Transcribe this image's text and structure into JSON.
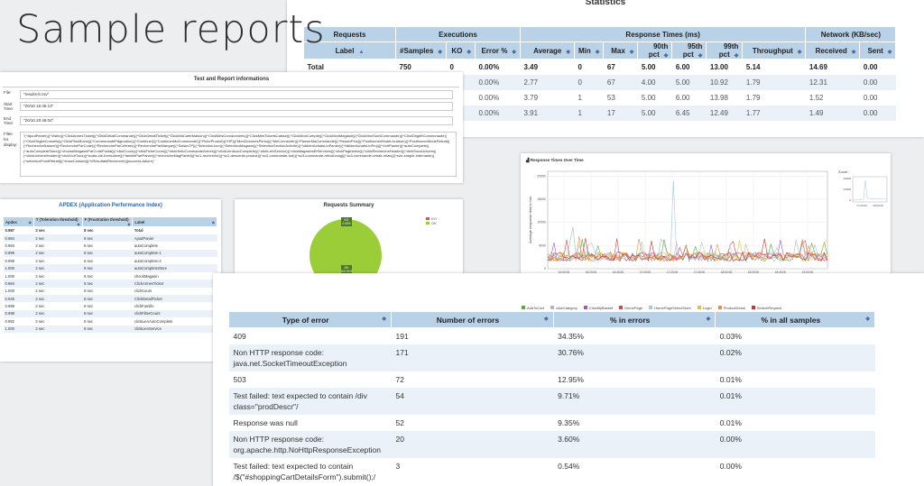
{
  "title": "Sample reports",
  "statistics": {
    "title": "Statistics",
    "group_headers": [
      "Requests",
      "Executions",
      "Response Times (ms)",
      "Network (KB/sec)"
    ],
    "columns": [
      "Label",
      "#Samples",
      "KO",
      "Error %",
      "Average",
      "Min",
      "Max",
      "90th pct",
      "95th pct",
      "99th pct",
      "Throughput",
      "Received",
      "Sent"
    ],
    "rows": [
      [
        "Total",
        "750",
        "0",
        "0.00%",
        "3.49",
        "0",
        "67",
        "5.00",
        "6.00",
        "13.00",
        "5.14",
        "14.69",
        "0.00"
      ],
      [
        "",
        "",
        "",
        "0.00%",
        "2.77",
        "0",
        "67",
        "4.00",
        "5.00",
        "10.92",
        "1.79",
        "12.31",
        "0.00"
      ],
      [
        "",
        "",
        "",
        "0.00%",
        "3.79",
        "1",
        "53",
        "5.00",
        "6.00",
        "13.98",
        "1.79",
        "1.52",
        "0.00"
      ],
      [
        "",
        "",
        "",
        "0.00%",
        "3.91",
        "1",
        "17",
        "5.00",
        "6.45",
        "12.49",
        "1.77",
        "1.49",
        "0.00"
      ]
    ]
  },
  "info": {
    "title": "Test and Report informations",
    "file_label": "File:",
    "file": "\"results-lt.csv\"",
    "start_label": "Start Time:",
    "start": "\"20/10 16:45:13\"",
    "end_label": "End Time:",
    "end": "\"20/10 20:48:04\"",
    "filter_label": "Filter for display:",
    "filter": "\"(^AjoutPanier)|(^Visite)|(^ClickArmesTicket)|(^ClickDetailCommande)|(^ClickDetailTicket)|(^ClickMaCarteMaison)|(^ClickMesCoordonnees)|(^ClickMesTicketsCaisse)|(^ClickMonCompte)|(^ClickMonMagasin)|(^ClickMonSuiviCommande)|(^ClickOngletCommunaute)|(^ClickOngletConseils)|(^ClickPlusMoins)|(^CommunautePagination)|(^Continuer)|(^ContinuerMaCommande)|(^FicheProduit)|(^HP)|(^MesDonneesPerso)|(^MeConnecter)|(^PasserMaCommande)|(^PasserPlus)|(^PositionnerModeLivraison)|(^PositionnerModeRetrait)|(^RechercheNaturel)|(^RechercheParCode)|(^RechercheParCriteres)|(^RechercheParMarque)|(^SaisieCP)|(^SelectionJour)|(^SelectionMagasin)|(^SelectionSectionActivite)|(^ValiderAchatsLinPanier)|(^ValiderAchatsLinProj)|(^VoirPanier)|(^autoComplete)|(^autoCompleteStore)|(^chooseMagasinParCodePostal)|(^clickCours)|(^clickFicheCours)|(^clickHistoCommandeArmes)|(^clickLienAutoComplete)|(^clickLienService)|(^clickMagasinsEtServices)|(^clickPagination)|(^clickRechercheHeader)|(^clickSousUnivers)|(^clickUniversHeader)|(^clickVoirTous)|(^scala-ide-formulaire)|(^famillePartPanier)|(^rechercheMagPartiel)|(^sc1-recherche)|(^sc2-descente-produit)|(^sc3-commande-tod)|(^sc3-commande-retrait-mag)|(^sc3-commande-retrait-relais)|(^sort-simple-internaute)|(^selectionPointRetrait)|(^showContact)|(^nResultatsRecherche)|(success-failure)\""
  },
  "apdex": {
    "title": "APDEX (Application Performance Index)",
    "headers": [
      "Apdex",
      "T (Toleration threshold)",
      "F (Frustration threshold)",
      "Label"
    ],
    "rows": [
      [
        "0.987",
        "2 sec",
        "8 sec",
        "Total"
      ],
      [
        "0.984",
        "2 sec",
        "8 sec",
        "AjoutPanier"
      ],
      [
        "0.984",
        "2 sec",
        "8 sec",
        "autoComplete"
      ],
      [
        "0.999",
        "2 sec",
        "8 sec",
        "autoComplete-1"
      ],
      [
        "0.999",
        "2 sec",
        "8 sec",
        "autoComplete-2"
      ],
      [
        "1.000",
        "2 sec",
        "8 sec",
        "autoCompleteStore"
      ],
      [
        "1.000",
        "2 sec",
        "8 sec",
        "checkMagasin"
      ],
      [
        "0.984",
        "2 sec",
        "8 sec",
        "ClickArmesTicket"
      ],
      [
        "1.000",
        "2 sec",
        "8 sec",
        "clickCours"
      ],
      [
        "0.946",
        "2 sec",
        "8 sec",
        "ClickDetailTicket"
      ],
      [
        "0.998",
        "2 sec",
        "8 sec",
        "clickFamille"
      ],
      [
        "0.998",
        "2 sec",
        "8 sec",
        "clickFilterCours"
      ],
      [
        "0.992",
        "2 sec",
        "8 sec",
        "clickLienAutoComplete"
      ],
      [
        "1.000",
        "2 sec",
        "8 sec",
        "clickLienService"
      ]
    ]
  },
  "summary": {
    "title": "Requests Summary",
    "legend": [
      "KO",
      "OK"
    ],
    "ko_label": "KO",
    "ko_pct": "0.00%",
    "ok_label": "OK",
    "ok_pct": "100.00%",
    "colors": {
      "ok": "#9bcd38",
      "ko": "#e4533e"
    }
  },
  "rt_chart": {
    "title": "Response Times Over Time",
    "ylabel": "Average response time in ms",
    "xlabel": "Elapsed Time (granularity: 1 min)",
    "y_ticks": [
      "20000",
      "15000",
      "10000",
      "5000",
      "0"
    ],
    "x_ticks": [
      "16:00:00",
      "16:20:00",
      "16:40:00",
      "17:00:00",
      "17:20:00",
      "17:40:00",
      "18:00:00",
      "18:20:00",
      "18:40:00",
      "19:00:00"
    ],
    "zoom_label": "Zoom :",
    "zoom_y_ticks": [
      "20000",
      "10000",
      "0"
    ],
    "zoom_x_ticks": [
      "17:00:00",
      "18:00:00"
    ],
    "legend": [
      {
        "name": "AddToCart",
        "color": "#5aaa3c"
      },
      {
        "name": "clickCategory",
        "color": "#b0b8c0"
      },
      {
        "name": "ClickMyBasket",
        "color": "#9c5ad0"
      },
      {
        "name": "HomePage",
        "color": "#d04848"
      },
      {
        "name": "HomePageSelectStore",
        "color": "#a8c8e8"
      },
      {
        "name": "Login",
        "color": "#e8c040"
      },
      {
        "name": "ProductDetail",
        "color": "#e89040"
      },
      {
        "name": "SearchRequest",
        "color": "#d03030"
      }
    ]
  },
  "errors": {
    "headers": [
      "Type of error",
      "Number of errors",
      "% in errors",
      "% in all samples"
    ],
    "rows": [
      [
        "409",
        "191",
        "34.35%",
        "0.03%"
      ],
      [
        "Non HTTP response code: java.net.SocketTimeoutException",
        "171",
        "30.76%",
        "0.02%"
      ],
      [
        "503",
        "72",
        "12.95%",
        "0.01%"
      ],
      [
        "Test failed: text expected to contain /div class=\"prodDescr\"/",
        "54",
        "9.71%",
        "0.01%"
      ],
      [
        "Response was null",
        "52",
        "9.35%",
        "0.01%"
      ],
      [
        "Non HTTP response code: org.apache.http.NoHttpResponseException",
        "20",
        "3.60%",
        "0.00%"
      ],
      [
        "Test failed: text expected to contain /$(\"#shoppingCartDetailsForm\").submit();/",
        "3",
        "0.54%",
        "0.00%"
      ]
    ]
  }
}
